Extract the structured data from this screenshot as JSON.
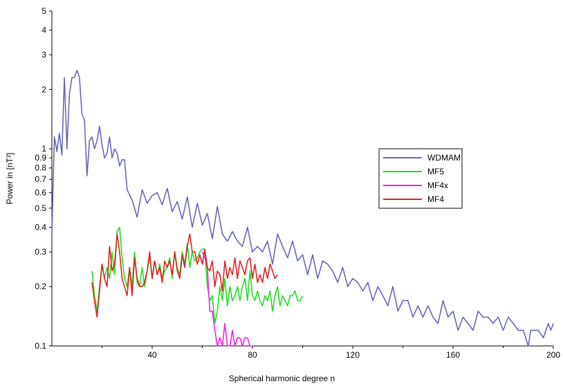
{
  "chart_data": {
    "type": "line",
    "xlabel": "Spherical harmonic degree n",
    "ylabel": "Power in [nT²]",
    "xlim": [
      0,
      200
    ],
    "ylim": [
      0.1,
      5
    ],
    "y_scale": "log",
    "grid": false,
    "legend_position": "right",
    "x_ticks": [
      40,
      80,
      120,
      160,
      200
    ],
    "y_ticks": [
      0.1,
      0.2,
      0.3,
      0.4,
      0.5,
      0.6,
      0.7,
      0.8,
      0.9,
      1,
      2,
      3,
      4,
      5
    ],
    "y_tick_labels": [
      "0.1",
      "0.2",
      "0.3",
      "0.4",
      "0.5",
      "0.6",
      "0.7",
      "0.8",
      "0.9",
      "1",
      "2",
      "3",
      "4",
      "5"
    ],
    "series": [
      {
        "name": "WDMAM",
        "color": "#6666bb",
        "x": [
          0,
          1,
          2,
          3,
          4,
          5,
          6,
          7,
          8,
          9,
          10,
          11,
          12,
          13,
          14,
          15,
          16,
          17,
          18,
          19,
          20,
          21,
          22,
          23,
          24,
          25,
          26,
          27,
          28,
          29,
          30,
          32,
          34,
          36,
          38,
          40,
          42,
          44,
          46,
          48,
          50,
          52,
          54,
          56,
          58,
          60,
          62,
          64,
          66,
          68,
          70,
          72,
          74,
          76,
          78,
          80,
          82,
          84,
          86,
          88,
          90,
          92,
          94,
          96,
          98,
          100,
          102,
          104,
          106,
          108,
          110,
          112,
          114,
          116,
          118,
          120,
          122,
          124,
          126,
          128,
          130,
          132,
          134,
          136,
          138,
          140,
          142,
          144,
          146,
          148,
          150,
          152,
          154,
          156,
          158,
          160,
          162,
          164,
          166,
          168,
          170,
          172,
          174,
          176,
          178,
          180,
          182,
          184,
          186,
          188,
          190,
          191,
          192,
          194,
          196,
          198,
          199,
          200
        ],
        "y": [
          0.37,
          1.15,
          0.97,
          1.2,
          0.93,
          2.3,
          1.0,
          1.9,
          2.3,
          2.3,
          2.5,
          2.3,
          1.5,
          1.4,
          0.73,
          1.1,
          1.15,
          1.0,
          1.1,
          1.3,
          1.05,
          0.9,
          0.95,
          1.15,
          0.9,
          1.0,
          0.95,
          0.82,
          0.88,
          0.88,
          0.62,
          0.55,
          0.45,
          0.62,
          0.53,
          0.58,
          0.6,
          0.52,
          0.63,
          0.48,
          0.54,
          0.44,
          0.57,
          0.4,
          0.53,
          0.41,
          0.47,
          0.35,
          0.51,
          0.37,
          0.34,
          0.38,
          0.34,
          0.32,
          0.4,
          0.3,
          0.32,
          0.3,
          0.34,
          0.26,
          0.37,
          0.32,
          0.28,
          0.34,
          0.27,
          0.29,
          0.23,
          0.29,
          0.22,
          0.27,
          0.26,
          0.24,
          0.21,
          0.25,
          0.2,
          0.22,
          0.21,
          0.19,
          0.21,
          0.17,
          0.2,
          0.18,
          0.16,
          0.2,
          0.15,
          0.17,
          0.17,
          0.14,
          0.16,
          0.14,
          0.16,
          0.14,
          0.13,
          0.17,
          0.14,
          0.15,
          0.12,
          0.14,
          0.13,
          0.12,
          0.15,
          0.14,
          0.14,
          0.13,
          0.14,
          0.12,
          0.14,
          0.13,
          0.12,
          0.12,
          0.1,
          0.12,
          0.12,
          0.12,
          0.11,
          0.13,
          0.12,
          0.13
        ]
      },
      {
        "name": "MF5",
        "color": "#22dd22",
        "x": [
          16,
          17,
          18,
          19,
          20,
          21,
          22,
          23,
          24,
          25,
          26,
          27,
          28,
          29,
          30,
          31,
          32,
          33,
          34,
          35,
          36,
          37,
          38,
          39,
          40,
          41,
          42,
          43,
          44,
          45,
          46,
          47,
          48,
          49,
          50,
          51,
          52,
          53,
          54,
          55,
          56,
          57,
          58,
          59,
          60,
          61,
          62,
          63,
          64,
          65,
          66,
          67,
          68,
          69,
          70,
          71,
          72,
          73,
          74,
          75,
          76,
          77,
          78,
          79,
          80,
          81,
          82,
          83,
          84,
          85,
          86,
          87,
          88,
          89,
          90,
          91,
          92,
          93,
          94,
          95,
          96,
          97,
          98,
          99,
          100
        ],
        "y": [
          0.24,
          0.18,
          0.15,
          0.2,
          0.26,
          0.22,
          0.25,
          0.22,
          0.3,
          0.23,
          0.38,
          0.4,
          0.28,
          0.22,
          0.2,
          0.25,
          0.2,
          0.3,
          0.21,
          0.2,
          0.25,
          0.2,
          0.24,
          0.28,
          0.22,
          0.27,
          0.23,
          0.26,
          0.22,
          0.24,
          0.25,
          0.28,
          0.22,
          0.3,
          0.25,
          0.23,
          0.3,
          0.26,
          0.33,
          0.25,
          0.3,
          0.27,
          0.28,
          0.3,
          0.31,
          0.31,
          0.2,
          0.17,
          0.18,
          0.13,
          0.15,
          0.2,
          0.17,
          0.22,
          0.16,
          0.2,
          0.17,
          0.18,
          0.2,
          0.17,
          0.2,
          0.22,
          0.17,
          0.24,
          0.18,
          0.17,
          0.19,
          0.17,
          0.16,
          0.18,
          0.17,
          0.19,
          0.15,
          0.18,
          0.2,
          0.16,
          0.18,
          0.17,
          0.16,
          0.18,
          0.18,
          0.19,
          0.17,
          0.17,
          0.18
        ]
      },
      {
        "name": "MF4x",
        "color": "#ee22ee",
        "x": [
          60,
          61,
          62,
          63,
          64,
          65,
          66,
          67,
          68,
          69,
          70,
          71,
          72,
          73,
          74,
          75,
          76,
          77,
          78,
          79,
          80
        ],
        "y": [
          0.3,
          0.28,
          0.25,
          0.15,
          0.15,
          0.12,
          0.1,
          0.11,
          0.1,
          0.13,
          0.1,
          0.1,
          0.12,
          0.1,
          0.11,
          0.11,
          0.1,
          0.11,
          0.11,
          0.1,
          0.1
        ]
      },
      {
        "name": "MF4",
        "color": "#dd2222",
        "x": [
          16,
          17,
          18,
          19,
          20,
          21,
          22,
          23,
          24,
          25,
          26,
          27,
          28,
          29,
          30,
          31,
          32,
          33,
          34,
          35,
          36,
          37,
          38,
          39,
          40,
          41,
          42,
          43,
          44,
          45,
          46,
          47,
          48,
          49,
          50,
          51,
          52,
          53,
          54,
          55,
          56,
          57,
          58,
          59,
          60,
          61,
          62,
          63,
          64,
          65,
          66,
          67,
          68,
          69,
          70,
          71,
          72,
          73,
          74,
          75,
          76,
          77,
          78,
          79,
          80,
          81,
          82,
          83,
          84,
          85,
          86,
          87,
          88,
          89,
          90
        ],
        "y": [
          0.21,
          0.17,
          0.14,
          0.19,
          0.26,
          0.22,
          0.2,
          0.32,
          0.24,
          0.26,
          0.37,
          0.3,
          0.22,
          0.2,
          0.18,
          0.25,
          0.18,
          0.28,
          0.22,
          0.2,
          0.2,
          0.21,
          0.24,
          0.3,
          0.22,
          0.27,
          0.23,
          0.25,
          0.21,
          0.27,
          0.25,
          0.27,
          0.23,
          0.3,
          0.24,
          0.22,
          0.29,
          0.25,
          0.32,
          0.37,
          0.3,
          0.3,
          0.26,
          0.29,
          0.26,
          0.31,
          0.25,
          0.24,
          0.27,
          0.2,
          0.24,
          0.23,
          0.19,
          0.27,
          0.22,
          0.25,
          0.23,
          0.28,
          0.22,
          0.27,
          0.25,
          0.23,
          0.27,
          0.28,
          0.22,
          0.26,
          0.21,
          0.23,
          0.21,
          0.25,
          0.22,
          0.26,
          0.24,
          0.22,
          0.23
        ]
      }
    ]
  }
}
